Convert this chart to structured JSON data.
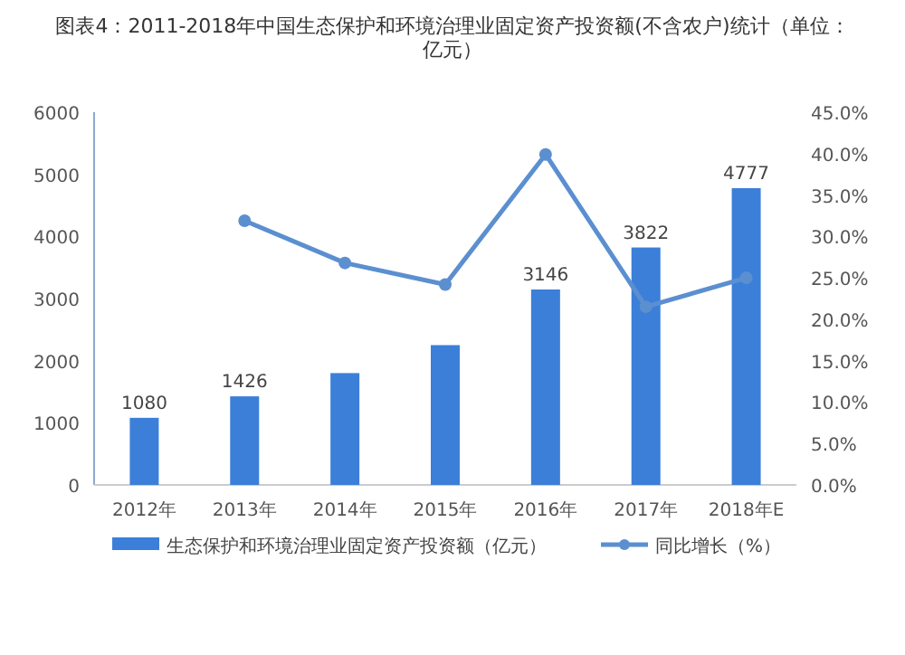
{
  "chart_data": {
    "type": "bar",
    "title": "图表4：2011-2018年中国生态保护和环境治理业固定资产投资额(不含农户)统计（单位：亿元）",
    "categories": [
      "2012年",
      "2013年",
      "2014年",
      "2015年",
      "2016年",
      "2017年",
      "2018年E"
    ],
    "series": [
      {
        "name": "生态保护和环境治理业固定资产投资额（亿元）",
        "color": "#3b7fd9",
        "values": [
          1080,
          1426,
          1800,
          2250,
          3146,
          3822,
          4777
        ],
        "value_labels": [
          "1080",
          "1426",
          null,
          null,
          "3146",
          "3822",
          "4777"
        ]
      },
      {
        "name": "同比增长（%）",
        "type": "line",
        "axis": "y2",
        "color": "#5b8fd0",
        "marker": "circle",
        "values": [
          null,
          31.9,
          26.8,
          24.2,
          39.9,
          21.5,
          25.0
        ]
      }
    ],
    "ylim": [
      0,
      6000
    ],
    "yticks": [
      0,
      1000,
      2000,
      3000,
      4000,
      5000,
      6000
    ],
    "y2lim": [
      0,
      45
    ],
    "y2ticks": [
      {
        "value": 0,
        "label": "0.0%"
      },
      {
        "value": 5,
        "label": "5.0%"
      },
      {
        "value": 10,
        "label": "10.0%"
      },
      {
        "value": 15,
        "label": "15.0%"
      },
      {
        "value": 20,
        "label": "20.0%"
      },
      {
        "value": 25,
        "label": "25.0%"
      },
      {
        "value": 30,
        "label": "30.0%"
      },
      {
        "value": 35,
        "label": "35.0%"
      },
      {
        "value": 40,
        "label": "40.0%"
      },
      {
        "value": 45,
        "label": "45.0%"
      }
    ],
    "legend": "bottom"
  }
}
